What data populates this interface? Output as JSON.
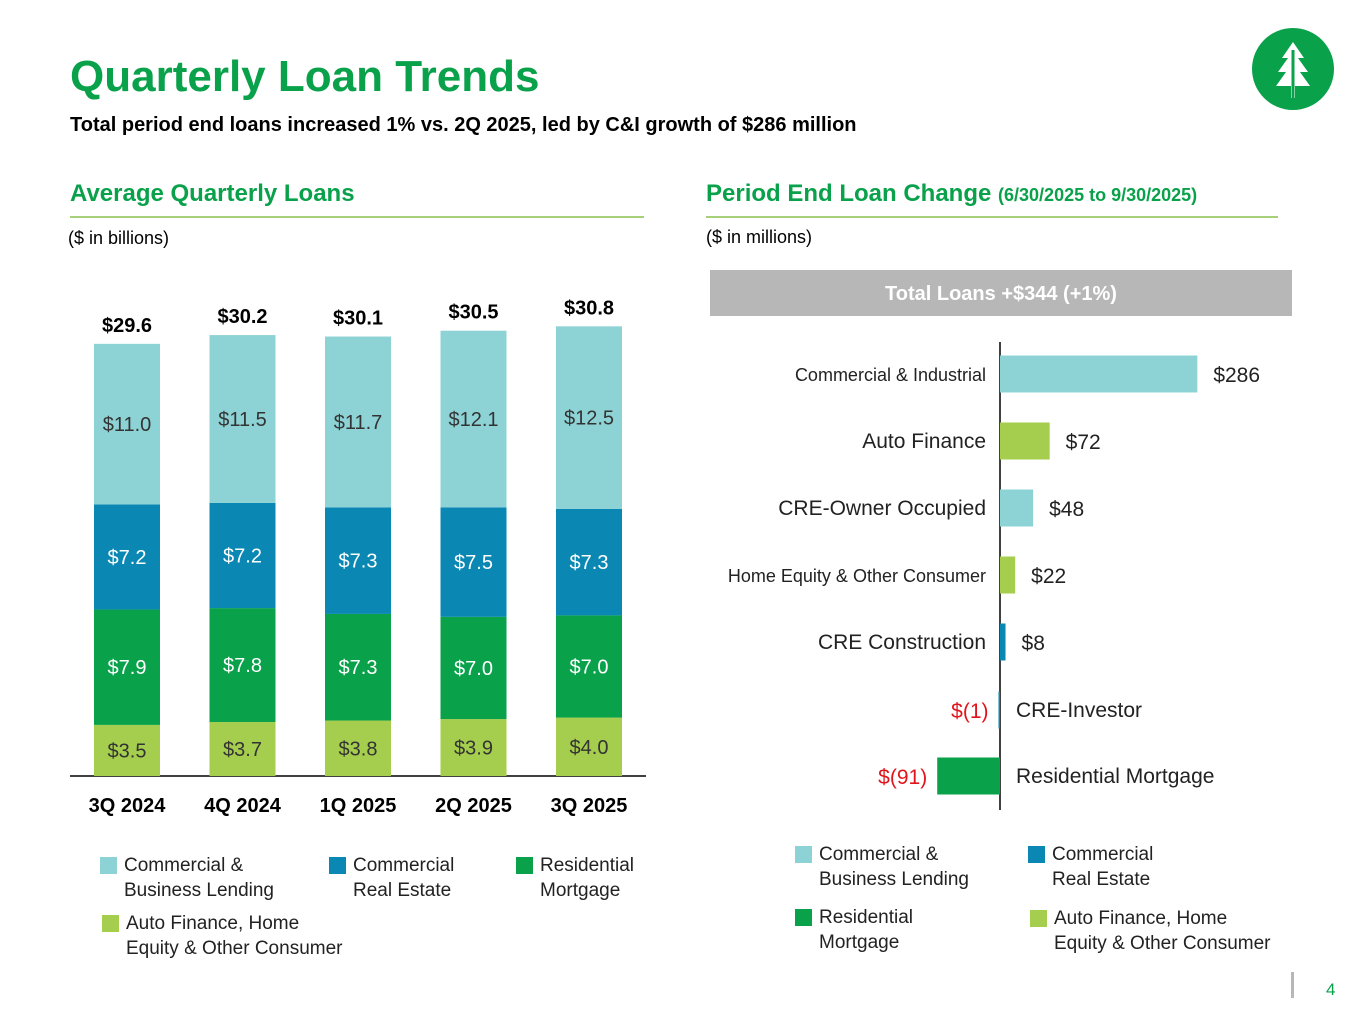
{
  "header": {
    "title": "Quarterly Loan Trends",
    "subtitle": "Total period end loans increased 1% vs. 2Q 2025, led by C&I growth of $286 million"
  },
  "left_section": {
    "title": "Average Quarterly Loans",
    "unit": "($ in billions)"
  },
  "right_section": {
    "title": "Period End Loan Change",
    "title_sub": "(6/30/2025 to 9/30/2025)",
    "unit": "($ in millions)",
    "banner": "Total Loans +$344 (+1%)"
  },
  "colors": {
    "commercial_business": "#8dd3d6",
    "commercial_real_estate": "#0b87b3",
    "residential_mortgage": "#0aa14b",
    "auto_home_consumer": "#a6ce4e",
    "negative_label": "#e0151c",
    "brand_green": "#0aa14b"
  },
  "left_legend": [
    {
      "label": "Commercial &\nBusiness Lending",
      "color_key": "commercial_business"
    },
    {
      "label": "Commercial\nReal Estate",
      "color_key": "commercial_real_estate"
    },
    {
      "label": "Residential\nMortgage",
      "color_key": "residential_mortgage"
    },
    {
      "label": "Auto Finance, Home\nEquity & Other Consumer",
      "color_key": "auto_home_consumer"
    }
  ],
  "right_legend": [
    {
      "label": "Commercial &\nBusiness Lending",
      "color_key": "commercial_business"
    },
    {
      "label": "Commercial\nReal Estate",
      "color_key": "commercial_real_estate"
    },
    {
      "label": "Residential\nMortgage",
      "color_key": "residential_mortgage"
    },
    {
      "label": "Auto Finance, Home\nEquity & Other Consumer",
      "color_key": "auto_home_consumer"
    }
  ],
  "page_number": "4",
  "chart_data": [
    {
      "type": "bar",
      "stacked": true,
      "title": "Average Quarterly Loans",
      "ylabel": "($ in billions)",
      "categories": [
        "3Q 2024",
        "4Q 2024",
        "1Q 2025",
        "2Q 2025",
        "3Q 2025"
      ],
      "totals": [
        "$29.6",
        "$30.2",
        "$30.1",
        "$30.5",
        "$30.8"
      ],
      "total_values": [
        29.6,
        30.2,
        30.1,
        30.5,
        30.8
      ],
      "series": [
        {
          "name": "Auto Finance, Home Equity & Other Consumer",
          "color_key": "auto_home_consumer",
          "values": [
            3.5,
            3.7,
            3.8,
            3.9,
            4.0
          ],
          "labels": [
            "$3.5",
            "$3.7",
            "$3.8",
            "$3.9",
            "$4.0"
          ]
        },
        {
          "name": "Residential Mortgage",
          "color_key": "residential_mortgage",
          "values": [
            7.9,
            7.8,
            7.3,
            7.0,
            7.0
          ],
          "labels": [
            "$7.9",
            "$7.8",
            "$7.3",
            "$7.0",
            "$7.0"
          ]
        },
        {
          "name": "Commercial Real Estate",
          "color_key": "commercial_real_estate",
          "values": [
            7.2,
            7.2,
            7.3,
            7.5,
            7.3
          ],
          "labels": [
            "$7.2",
            "$7.2",
            "$7.3",
            "$7.5",
            "$7.3"
          ]
        },
        {
          "name": "Commercial & Business Lending",
          "color_key": "commercial_business",
          "values": [
            11.0,
            11.5,
            11.7,
            12.1,
            12.5
          ],
          "labels": [
            "$11.0",
            "$11.5",
            "$11.7",
            "$12.1",
            "$12.5"
          ]
        }
      ],
      "ylim": [
        0,
        31
      ]
    },
    {
      "type": "bar",
      "orientation": "horizontal",
      "title": "Period End Loan Change (6/30/2025 to 9/30/2025)",
      "unit": "($ in millions)",
      "categories": [
        "Commercial & Industrial",
        "Auto Finance",
        "CRE-Owner Occupied",
        "Home Equity & Other Consumer",
        "CRE Construction",
        "CRE-Investor",
        "Residential Mortgage"
      ],
      "values": [
        286,
        72,
        48,
        22,
        8,
        -1,
        -91
      ],
      "labels": [
        "$286",
        "$72",
        "$48",
        "$22",
        "$8",
        "$(1)",
        "$(91)"
      ],
      "color_keys": [
        "commercial_business",
        "auto_home_consumer",
        "commercial_business",
        "auto_home_consumer",
        "commercial_real_estate",
        "commercial_real_estate",
        "residential_mortgage"
      ],
      "xlim": [
        -91,
        286
      ]
    }
  ]
}
